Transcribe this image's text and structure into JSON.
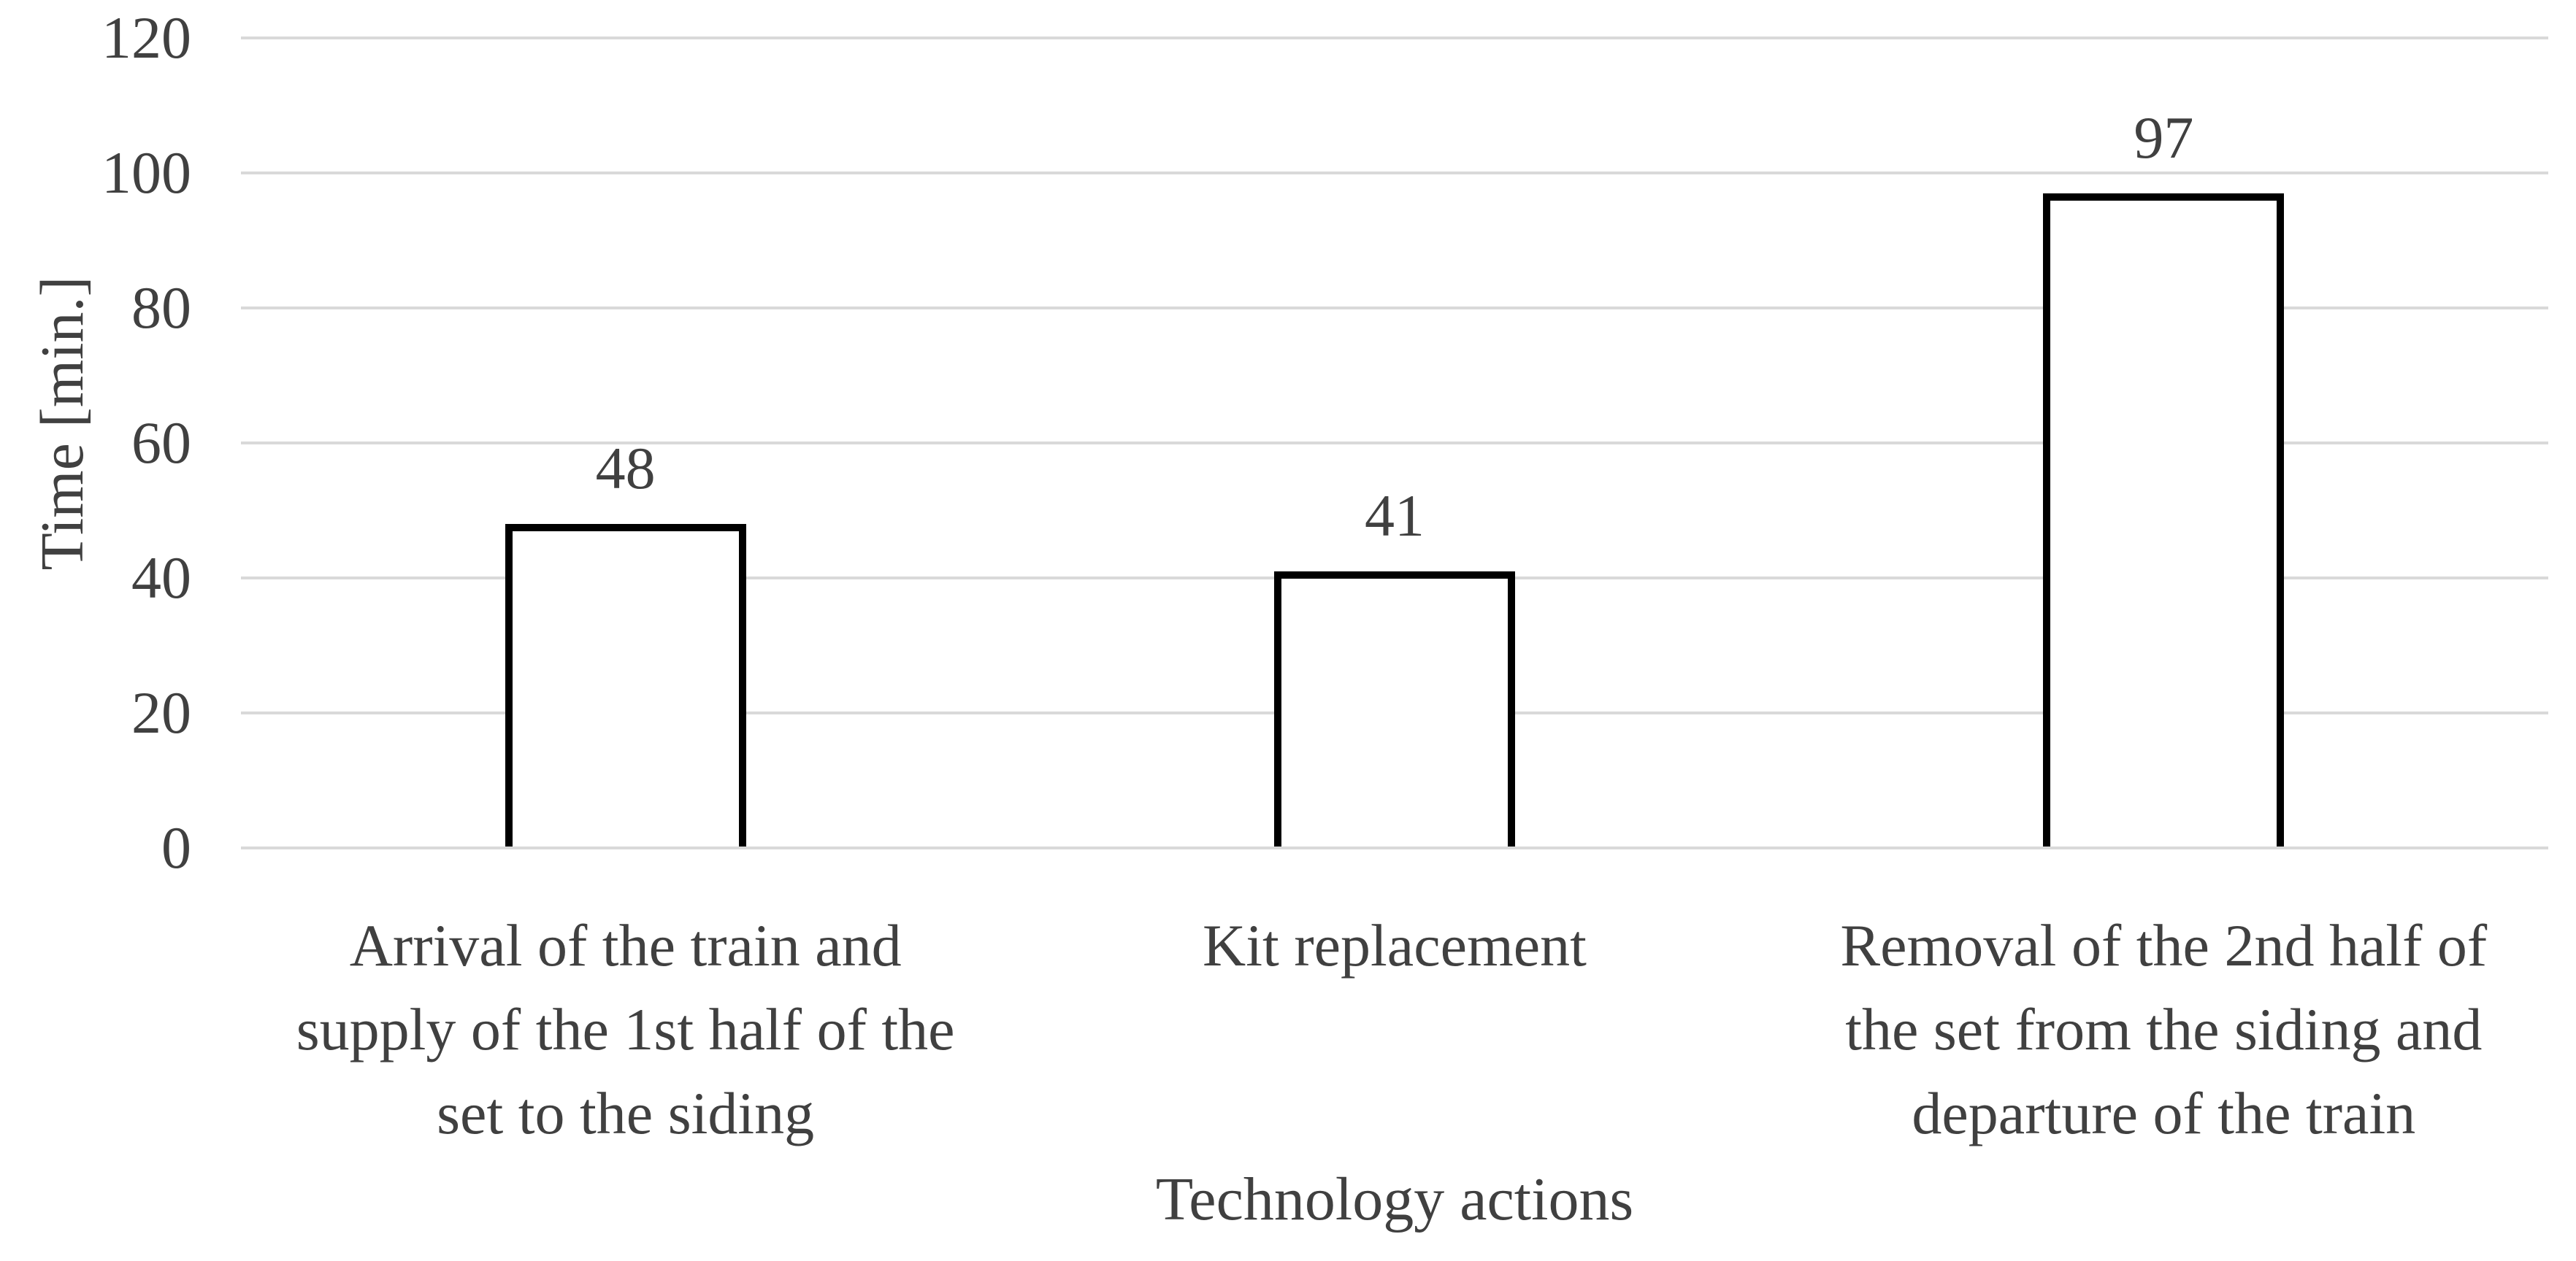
{
  "chart_data": {
    "type": "bar",
    "title": "",
    "xlabel": "Technology actions",
    "ylabel": "Time [min.]",
    "categories": [
      "Arrival of the train and supply of the 1st half of the set to the siding",
      "Kit replacement",
      "Removal of the 2nd half of the set from the siding and departure of the train"
    ],
    "category_lines": [
      [
        "Arrival of the train and",
        "supply of the 1st half of the",
        "set to the siding"
      ],
      [
        "Kit replacement"
      ],
      [
        "Removal of the 2nd half of",
        "the set from the siding and",
        "departure of the train"
      ]
    ],
    "values": [
      48,
      41,
      97
    ],
    "data_labels": [
      "48",
      "41",
      "97"
    ],
    "yticks": [
      0,
      20,
      40,
      60,
      80,
      100,
      120
    ],
    "ylim": [
      0,
      120
    ],
    "grid": true,
    "legend": false,
    "bar_style": {
      "fill": "#ffffff",
      "border": "#000000"
    },
    "colors": {
      "text": "#404040",
      "gridline": "#d9d9d9"
    }
  }
}
